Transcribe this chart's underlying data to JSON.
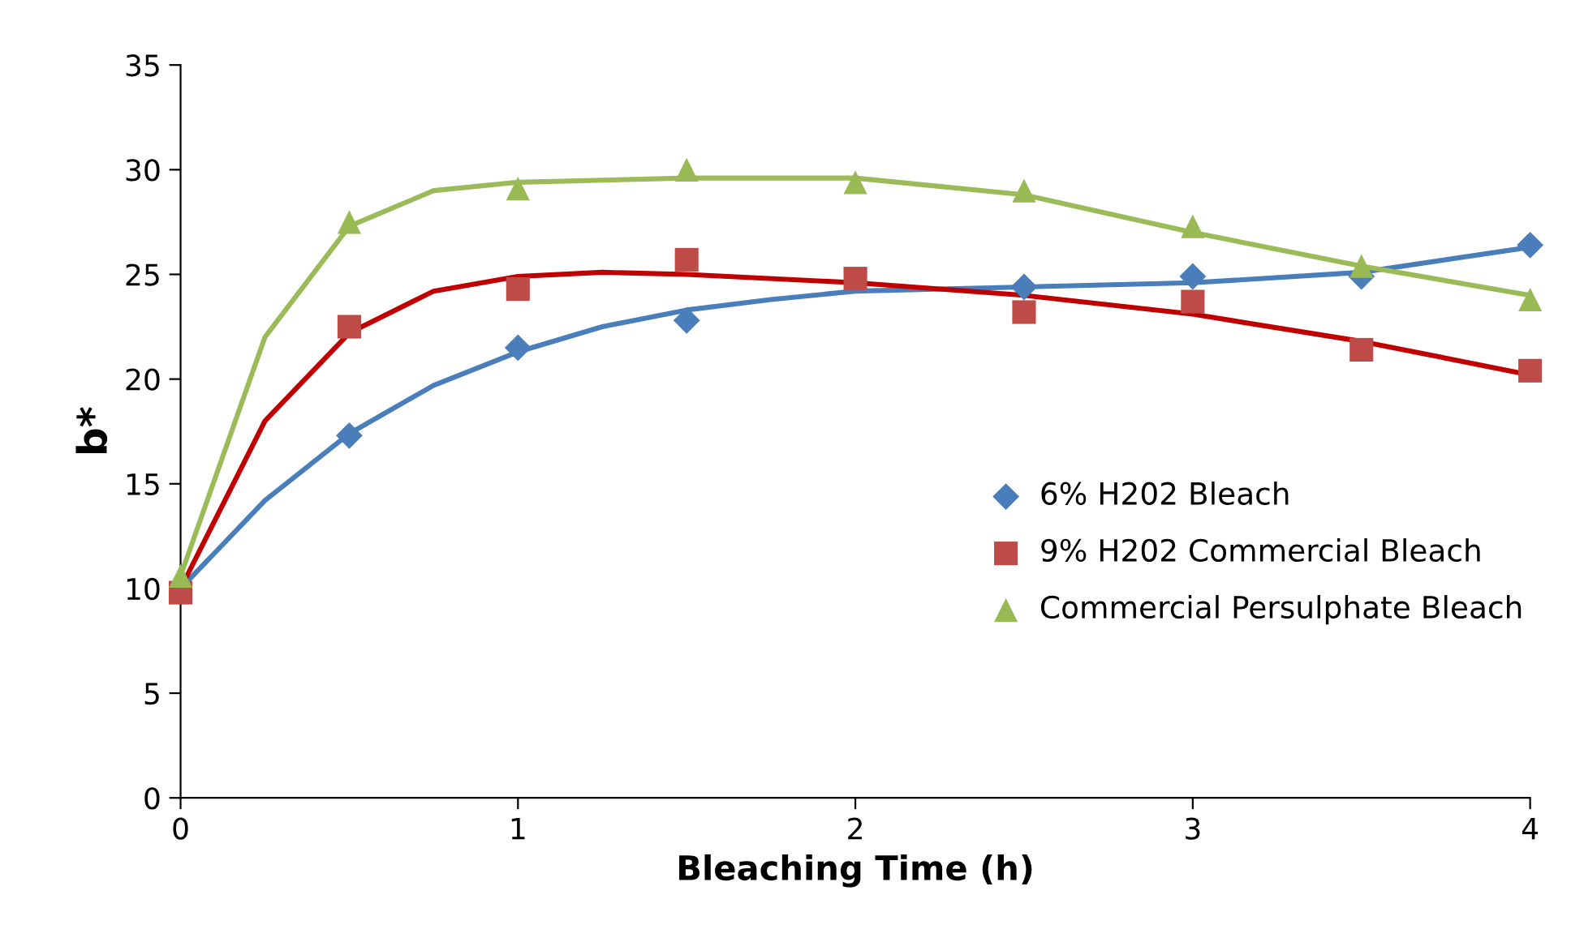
{
  "chart_data": {
    "type": "scatter",
    "xlabel": "Bleaching Time (h)",
    "ylabel": "b*",
    "xlim": [
      0,
      4
    ],
    "ylim": [
      0,
      35
    ],
    "xticks": [
      0,
      1,
      2,
      3,
      4
    ],
    "yticks": [
      0,
      5,
      10,
      15,
      20,
      25,
      30,
      35
    ],
    "grid": false,
    "legend": "right",
    "x": [
      0,
      0.5,
      1,
      1.5,
      2,
      2.5,
      3,
      3.5,
      4
    ],
    "series": [
      {
        "name": "6% H202 Bleach",
        "color": "#4a7ebb",
        "marker": "diamond",
        "values": [
          null,
          17.3,
          21.5,
          22.8,
          null,
          24.4,
          24.9,
          24.9,
          26.4
        ]
      },
      {
        "name": "9% H202 Commercial Bleach",
        "color": "#be4b48",
        "marker": "square",
        "values": [
          9.8,
          22.5,
          24.3,
          25.7,
          24.8,
          23.2,
          23.7,
          21.4,
          20.4
        ]
      },
      {
        "name": "Commercial Persulphate Bleach",
        "color": "#98b954",
        "marker": "triangle",
        "values": [
          10.6,
          27.5,
          29.1,
          30.0,
          29.4,
          29.0,
          27.3,
          25.4,
          23.8
        ]
      },
      {
        "type": "line",
        "color": "#4a7ebb",
        "x": [
          0,
          0.25,
          0.5,
          0.75,
          1,
          1.25,
          1.5,
          1.75,
          2,
          2.5,
          3,
          3.5,
          4
        ],
        "values": [
          10.0,
          14.2,
          17.4,
          19.7,
          21.3,
          22.5,
          23.3,
          23.8,
          24.2,
          24.4,
          24.6,
          25.1,
          26.3
        ]
      },
      {
        "type": "line",
        "color": "#c00000",
        "x": [
          0,
          0.25,
          0.5,
          0.75,
          1,
          1.25,
          1.5,
          2,
          2.5,
          3,
          3.5,
          4
        ],
        "values": [
          10.0,
          18.0,
          22.2,
          24.2,
          24.9,
          25.1,
          25.0,
          24.6,
          24.0,
          23.1,
          21.8,
          20.2
        ]
      },
      {
        "type": "line",
        "color": "#9bbb59",
        "x": [
          0,
          0.25,
          0.5,
          0.75,
          1,
          1.5,
          2,
          2.5,
          3,
          3.5,
          4
        ],
        "values": [
          10.6,
          22.0,
          27.3,
          29.0,
          29.4,
          29.6,
          29.6,
          28.8,
          27.0,
          25.4,
          24.0
        ]
      }
    ]
  }
}
